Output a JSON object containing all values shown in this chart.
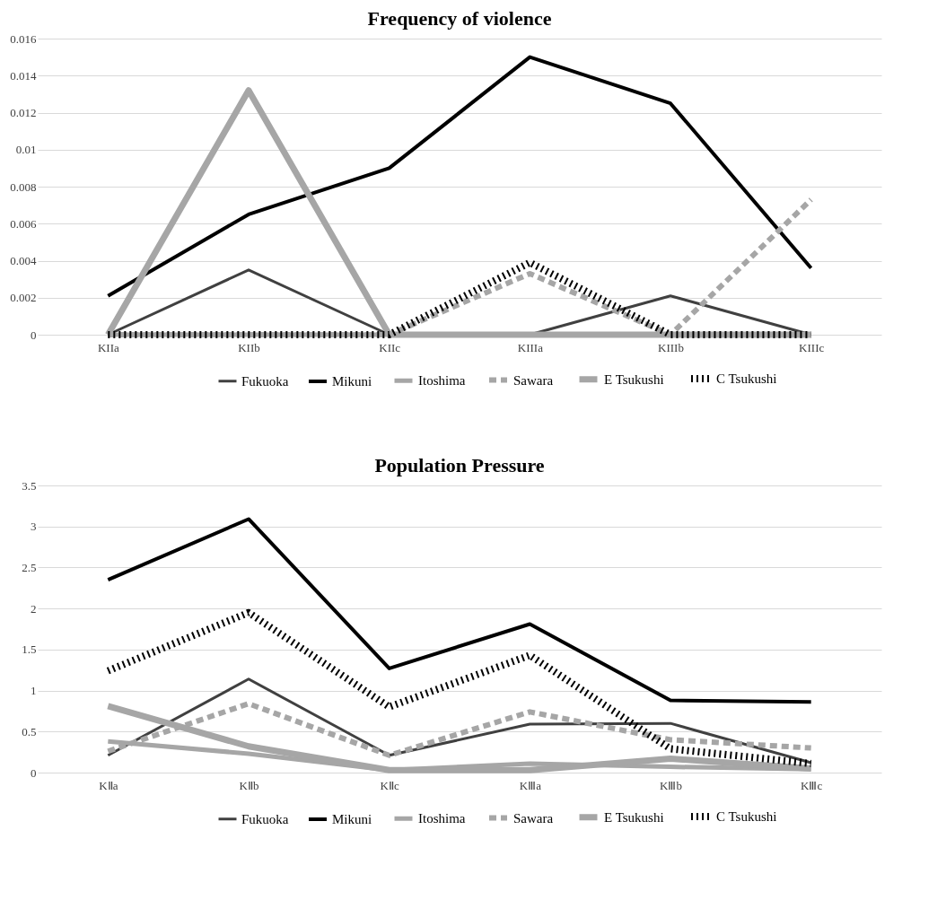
{
  "chart_data": [
    {
      "type": "line",
      "title": "Frequency of violence",
      "categories": [
        "KIIa",
        "KIIb",
        "KIIc",
        "KIIIa",
        "KIIIb",
        "KIIIc"
      ],
      "ylim": [
        0,
        0.016
      ],
      "yticks": [
        0,
        0.002,
        0.004,
        0.006,
        0.008,
        0.01,
        0.012,
        0.014,
        0.016
      ],
      "grid": "y",
      "legend": "bottom",
      "marker": "none",
      "series": [
        {
          "name": "Fukuoka",
          "color": "#404040",
          "line_style": "solid",
          "values": [
            0,
            0.0035,
            0,
            0,
            0.0021,
            0
          ]
        },
        {
          "name": "Mikuni",
          "color": "#000000",
          "line_style": "solid",
          "values": [
            0.0021,
            0.0065,
            0.009,
            0.015,
            0.0125,
            0.0036
          ]
        },
        {
          "name": "Itoshima",
          "color": "#a6a6a6",
          "line_style": "solid",
          "values": [
            0,
            0,
            0,
            0,
            0,
            0
          ]
        },
        {
          "name": "Sawara",
          "color": "#a6a6a6",
          "line_style": "dashed",
          "values": [
            0,
            0,
            0,
            0.0033,
            0,
            0.0073
          ]
        },
        {
          "name": "E Tsukushi",
          "color": "#a6a6a6",
          "line_style": "solid",
          "values": [
            0,
            0.0132,
            0,
            0,
            0,
            0
          ]
        },
        {
          "name": "C Tsukushi",
          "color": "#000000",
          "line_style": "dotted",
          "values": [
            0,
            0,
            0,
            0.0039,
            0,
            0
          ]
        }
      ]
    },
    {
      "type": "line",
      "title": "Population Pressure",
      "categories": [
        "KⅡa",
        "KⅡb",
        "KⅡc",
        "KⅢa",
        "KⅢb",
        "KⅢc"
      ],
      "ylim": [
        0,
        3.5
      ],
      "yticks": [
        0,
        0.5,
        1,
        1.5,
        2,
        2.5,
        3,
        3.5
      ],
      "grid": "y",
      "legend": "bottom",
      "marker": "none",
      "series": [
        {
          "name": "Fukuoka",
          "color": "#404040",
          "line_style": "solid",
          "values": [
            0.21,
            1.14,
            0.21,
            0.59,
            0.6,
            0.12
          ]
        },
        {
          "name": "Mikuni",
          "color": "#000000",
          "line_style": "solid",
          "values": [
            2.35,
            3.09,
            1.27,
            1.81,
            0.88,
            0.86
          ]
        },
        {
          "name": "Itoshima",
          "color": "#a6a6a6",
          "line_style": "solid",
          "values": [
            0.38,
            0.23,
            0.03,
            0.11,
            0.07,
            0.04
          ]
        },
        {
          "name": "Sawara",
          "color": "#a6a6a6",
          "line_style": "dashed",
          "values": [
            0.26,
            0.84,
            0.21,
            0.74,
            0.4,
            0.3
          ]
        },
        {
          "name": "E Tsukushi",
          "color": "#a6a6a6",
          "line_style": "solid",
          "values": [
            0.81,
            0.32,
            0.03,
            0.03,
            0.17,
            0.05
          ]
        },
        {
          "name": "C Tsukushi",
          "color": "#000000",
          "line_style": "dotted",
          "values": [
            1.24,
            1.95,
            0.8,
            1.43,
            0.29,
            0.11
          ]
        }
      ]
    }
  ]
}
